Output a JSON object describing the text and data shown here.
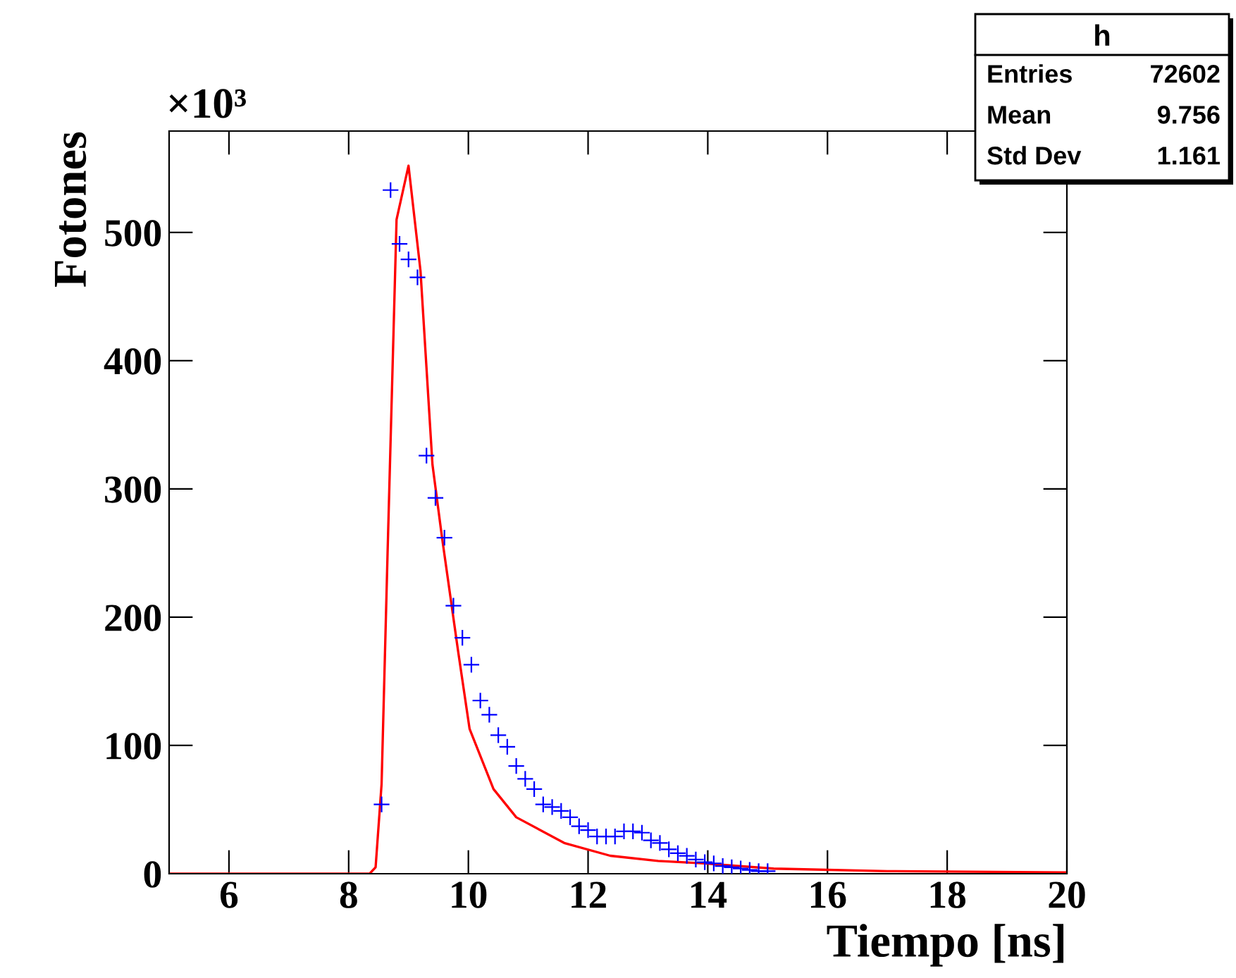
{
  "chart_data": {
    "type": "scatter",
    "xlabel": "Tiempo [ns]",
    "ylabel": "Fotones",
    "xlim": [
      5,
      20
    ],
    "ylim": [
      0,
      579
    ],
    "xticks": [
      6,
      8,
      10,
      12,
      14,
      16,
      18,
      20
    ],
    "yticks": [
      0,
      100,
      200,
      300,
      400,
      500
    ],
    "grid": false,
    "legend": false,
    "marker": "cross",
    "annotations": [
      "×10³",
      "h",
      "Entries",
      "72602",
      "Mean",
      "9.756",
      "Std Dev",
      "1.161"
    ],
    "series": [
      {
        "color": "#0000ff",
        "x": [
          8.55,
          8.7,
          8.85,
          9.0,
          9.15,
          9.3,
          9.45,
          9.6,
          9.75,
          9.9,
          10.05,
          10.2,
          10.35,
          10.5,
          10.65,
          10.8,
          10.95,
          11.1,
          11.25,
          11.4,
          11.55,
          11.7,
          11.85,
          12.0,
          12.15,
          12.3,
          12.45,
          12.6,
          12.75,
          12.9,
          13.05,
          13.2,
          13.35,
          13.5,
          13.65,
          13.8,
          13.95,
          14.1,
          14.25,
          14.4,
          14.55,
          14.7,
          14.85,
          15.0
        ],
        "values": [
          54,
          533,
          491,
          479,
          465,
          326,
          293,
          262,
          209,
          184,
          163,
          135,
          124,
          108,
          99,
          84,
          74,
          66,
          54,
          52,
          49,
          44,
          37,
          34,
          29,
          29,
          29,
          33,
          33,
          32,
          26,
          24,
          19,
          16,
          14,
          11,
          9,
          8,
          6,
          5,
          4,
          3,
          2,
          2
        ]
      },
      {
        "type": "line",
        "color": "#ff0000",
        "line_style": "solid",
        "marker": "none",
        "x": [
          5,
          8.35,
          8.45,
          8.55,
          8.65,
          8.8,
          9.0,
          9.2,
          9.4,
          9.56,
          9.83,
          10.02,
          10.42,
          10.8,
          11.6,
          12.37,
          13.17,
          13.95,
          15.1,
          17,
          20
        ],
        "values": [
          0,
          0,
          5,
          70,
          250,
          510,
          552,
          470,
          319,
          262,
          173,
          113,
          66,
          44,
          24,
          14,
          10,
          8,
          4,
          2,
          1
        ]
      }
    ]
  }
}
